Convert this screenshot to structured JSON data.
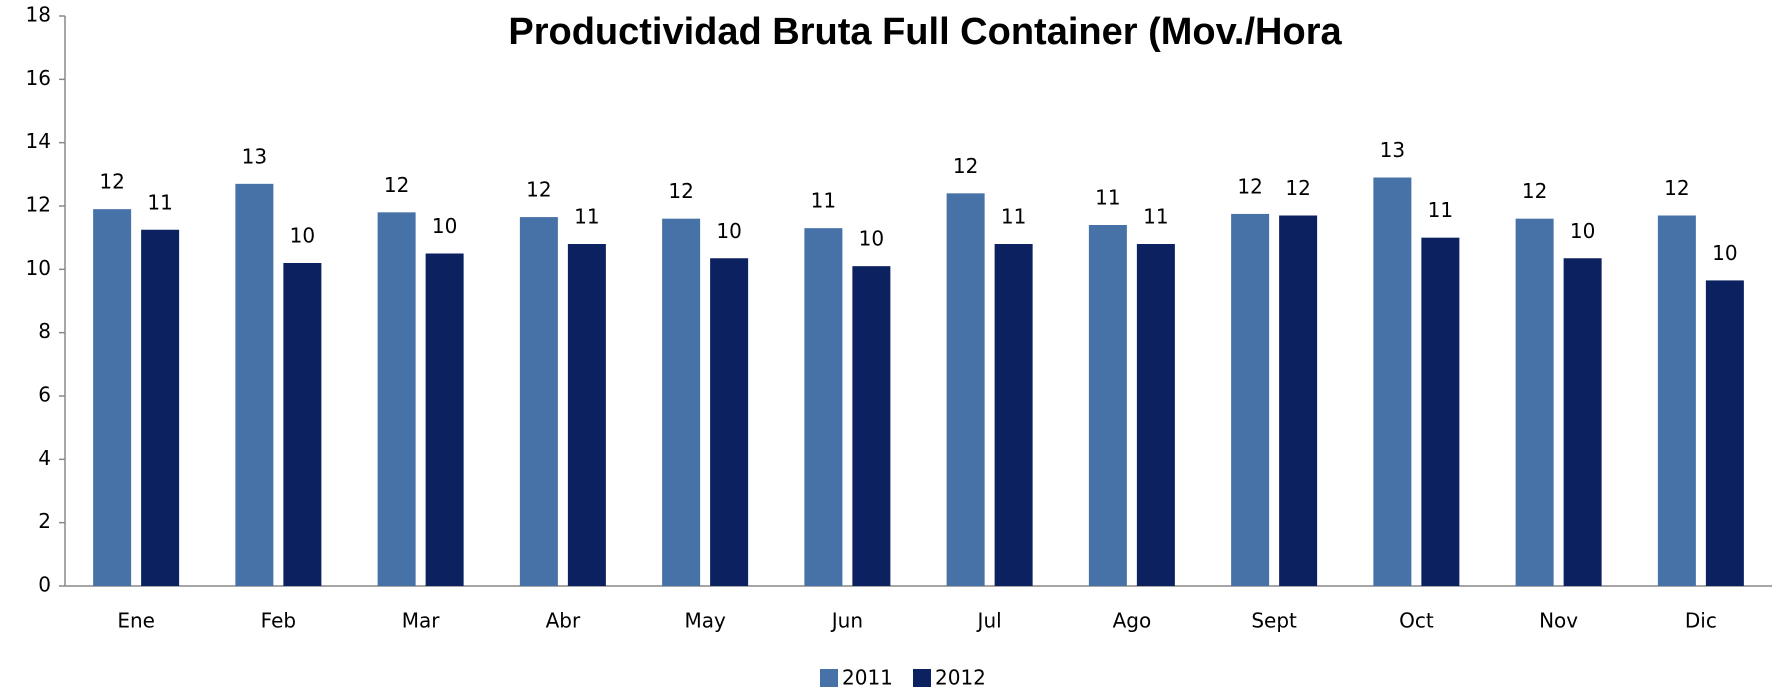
{
  "chart_data": {
    "type": "bar",
    "title": "Productividad Bruta Full Container (Mov./Hora",
    "categories": [
      "Ene",
      "Feb",
      "Mar",
      "Abr",
      "May",
      "Jun",
      "Jul",
      "Ago",
      "Sept",
      "Oct",
      "Nov",
      "Dic"
    ],
    "series": [
      {
        "name": "2011",
        "color": "#4672a8",
        "values": [
          11.9,
          12.7,
          11.8,
          11.65,
          11.6,
          11.3,
          12.4,
          11.4,
          11.75,
          12.9,
          11.6,
          11.7
        ],
        "value_labels": [
          "12",
          "13",
          "12",
          "12",
          "12",
          "11",
          "12",
          "11",
          "12",
          "13",
          "12",
          "12"
        ]
      },
      {
        "name": "2012",
        "color": "#0b2160",
        "values": [
          11.25,
          10.2,
          10.5,
          10.8,
          10.35,
          10.1,
          10.8,
          10.8,
          11.7,
          11.0,
          10.35,
          9.65
        ],
        "value_labels": [
          "11",
          "10",
          "10",
          "11",
          "10",
          "10",
          "11",
          "11",
          "12",
          "11",
          "10",
          "10"
        ]
      }
    ],
    "ylim": [
      0,
      18
    ],
    "yticks": [
      0,
      2,
      4,
      6,
      8,
      10,
      12,
      14,
      16,
      18
    ],
    "grid": false,
    "legend": "bottom"
  }
}
